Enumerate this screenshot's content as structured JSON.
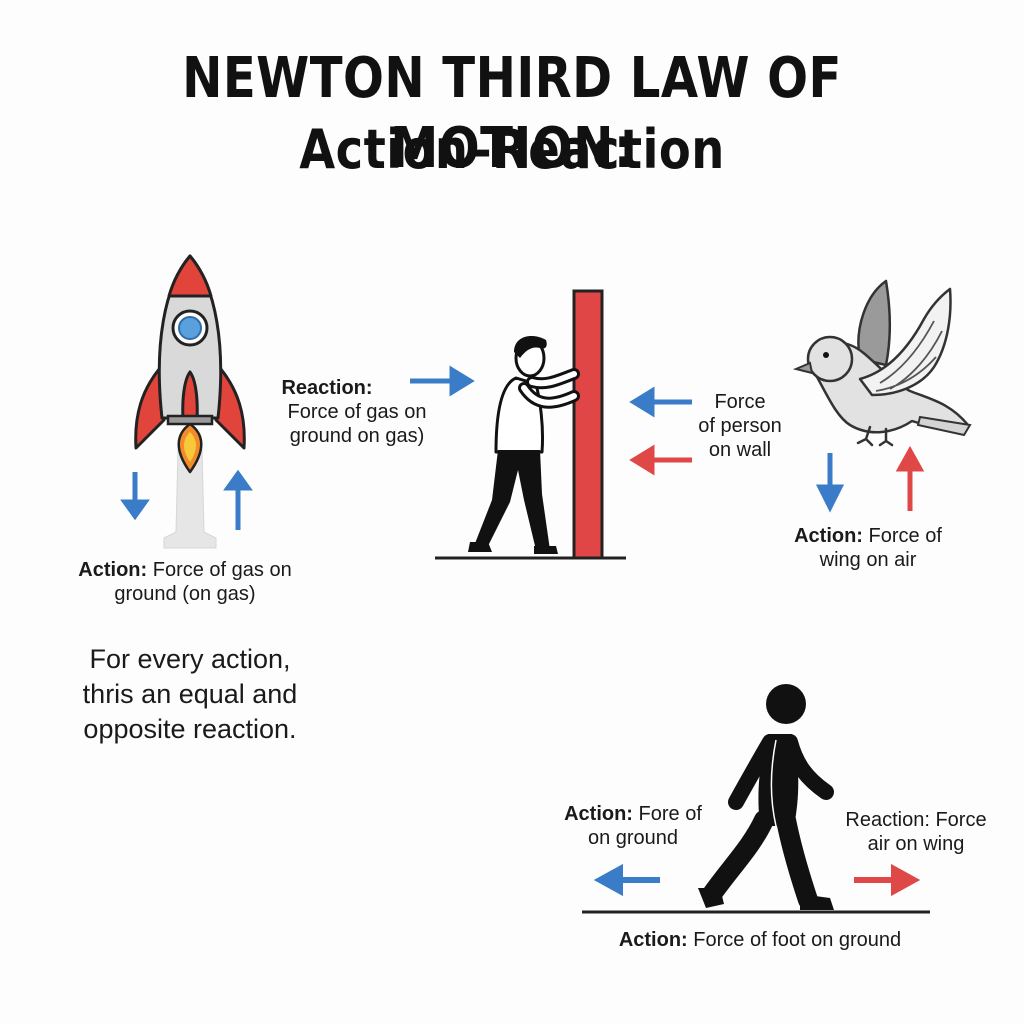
{
  "title": {
    "line1": "NEWTON THIRD LAW OF MOTION:",
    "line2": "Action–Reaction"
  },
  "rocket": {
    "label_bold": "Action:",
    "label_line1": "Force of gas on",
    "label_line2": "ground (on gas)"
  },
  "wall": {
    "reaction_bold": "Reaction:",
    "reaction_line1": "Force of gas on",
    "reaction_line2": "ground on gas)",
    "force_line1": "Force",
    "force_line2": "of person",
    "force_line3": "on wall"
  },
  "bird": {
    "label_bold": "Action:",
    "label_line1": "Force of",
    "label_line2": "wing on air"
  },
  "walker": {
    "action_bold": "Action:",
    "action_line1": "Fore of",
    "action_line2": "on ground",
    "reaction_bold": "Reaction:",
    "reaction_line1": "Force",
    "reaction_line2": "air on wing",
    "foot_bold": "Action:",
    "foot_text": "Force of foot on ground"
  },
  "motto": {
    "line1": "For every action,",
    "line2": "thris an equal and",
    "line3": "opposite reaction."
  },
  "colors": {
    "action_arrow": "#3a7cc7",
    "reaction_arrow": "#e04848",
    "wall": "#e04646",
    "rocket_fins": "#e0443a"
  }
}
